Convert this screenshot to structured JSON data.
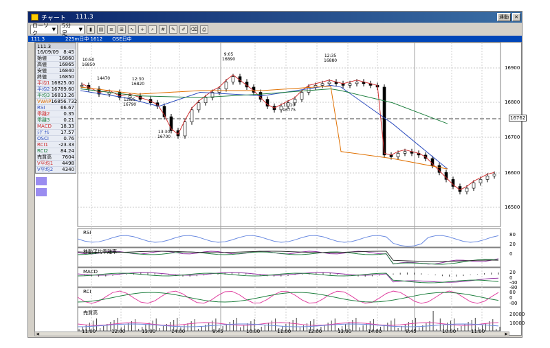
{
  "window": {
    "title": "チャート",
    "symbol": "111.3",
    "link_label": "連動"
  },
  "toolbar": {
    "chart_type": "ローソク",
    "interval": "5分足"
  },
  "infobar": {
    "symbol": "111.3",
    "desc": "225m日中 1612",
    "exchange": "OSE日中"
  },
  "panel": {
    "header": "111.3",
    "rows": [
      {
        "label": "16/09/09",
        "value": "8:45",
        "color": "#000000"
      },
      {
        "label": "始値",
        "value": "16860",
        "color": "#000000"
      },
      {
        "label": "高値",
        "value": "16865",
        "color": "#000000"
      },
      {
        "label": "安値",
        "value": "16840",
        "color": "#000000"
      },
      {
        "label": "終値",
        "value": "16850",
        "color": "#000000"
      },
      {
        "label": "平均1",
        "value": "16825.00",
        "color": "#d03030"
      },
      {
        "label": "平均2",
        "value": "16789.60",
        "color": "#3050c0"
      },
      {
        "label": "平均3",
        "value": "16813.26",
        "color": "#208040"
      },
      {
        "label": "VWAP",
        "value": "16856.732",
        "color": "#e07000"
      },
      {
        "label": "RSI",
        "value": "66.67",
        "color": "#3050c0"
      },
      {
        "label": "乖離2",
        "value": "0.35",
        "color": "#d03030"
      },
      {
        "label": "乖離3",
        "value": "0.21",
        "color": "#208040"
      },
      {
        "label": "MACD",
        "value": "18.33",
        "color": "#d03030"
      },
      {
        "label": "ｼｸﾞﾅﾙ",
        "value": "17.57",
        "color": "#3050c0"
      },
      {
        "label": "OSCI",
        "value": "0.76",
        "color": "#3050c0"
      },
      {
        "label": "RCI1",
        "value": "-23.33",
        "color": "#d03030"
      },
      {
        "label": "RCI2",
        "value": "84.24",
        "color": "#208040"
      },
      {
        "label": "売買高",
        "value": "7604",
        "color": "#000000"
      },
      {
        "label": "V平均1",
        "value": "4498",
        "color": "#d03030"
      },
      {
        "label": "V平均2",
        "value": "4340",
        "color": "#3050c0"
      }
    ]
  },
  "price_axis": [
    "16900",
    "16800",
    "16700",
    "16600",
    "16500"
  ],
  "current_price": "16762",
  "annotations": [
    {
      "time": "10:50",
      "price": "16850"
    },
    {
      "time": "12:30",
      "price": "16820"
    },
    {
      "time": "12:25",
      "price": "16790"
    },
    {
      "time": "13:30",
      "price": "16700"
    },
    {
      "time": "9:05",
      "price": "16890"
    },
    {
      "time": "11:10",
      "price": "16775"
    },
    {
      "time": "12:35",
      "price": "16880"
    }
  ],
  "annotation_partial": "14470",
  "panes": {
    "rsi": {
      "label": "RSI",
      "ticks": [
        "80",
        "20"
      ]
    },
    "kairi": {
      "label": "移動平均乖離率",
      "ticks": [
        "0"
      ]
    },
    "macd": {
      "label": "MACD",
      "ticks": [
        "20",
        "0",
        "-40",
        "-80"
      ]
    },
    "rci": {
      "label": "RCI",
      "ticks": [
        "80",
        "0",
        "-80"
      ]
    },
    "volume": {
      "label": "売買高",
      "ticks": [
        "20000",
        "10000"
      ]
    }
  },
  "time_axis": [
    "11:00",
    "12:00",
    "13:00",
    "14:00",
    "8:45",
    "10:00",
    "11:00",
    "12:00",
    "13:00",
    "14:00",
    "8:45",
    "10:00",
    "11:00"
  ],
  "colors": {
    "up": "#ffffff",
    "down": "#000000",
    "ma1": "#d03030",
    "ma2": "#3050c0",
    "ma3": "#208040",
    "vwap": "#e07000",
    "purple": "#9030a0"
  }
}
